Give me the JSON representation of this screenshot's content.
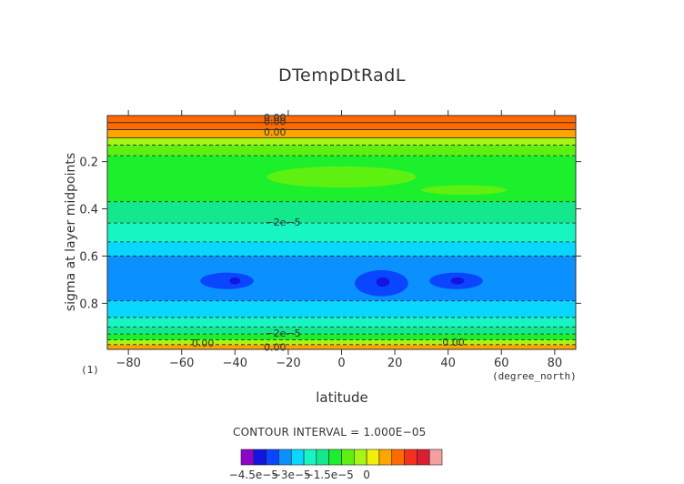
{
  "chart_data": {
    "type": "heatmap",
    "title": "DTempDtRadL",
    "xlabel": "latitude",
    "x_units": "(degree_north)",
    "ylabel": "sigma at layer midpoints",
    "panel_label": "(1)",
    "xlim": [
      -87.9,
      87.9
    ],
    "ylim": [
      0.995,
      0.005
    ],
    "x_ticks": [
      -80,
      -60,
      -40,
      -20,
      0,
      20,
      40,
      60,
      80
    ],
    "x_tick_labels": [
      "−80",
      "−60",
      "−40",
      "−20",
      "0",
      "20",
      "40",
      "60",
      "80"
    ],
    "y_ticks": [
      0.2,
      0.4,
      0.6,
      0.8
    ],
    "y_tick_labels": [
      "0.2",
      "0.4",
      "0.6",
      "0.8"
    ],
    "contour_interval_text": "CONTOUR INTERVAL = 1.000E−05",
    "contour_labels": [
      "0.00",
      "0.00",
      "0.00",
      "−2e−5",
      "−2e−5",
      "0.00",
      "0.00",
      "0.00"
    ],
    "colorbar": {
      "levels": [
        -4.5e-05,
        -4e-05,
        -3.5e-05,
        -3e-05,
        -2.5e-05,
        -2e-05,
        -1.5e-05,
        -1e-05,
        -5e-06,
        0,
        5e-06,
        1e-05
      ],
      "colors": [
        "#8d05c8",
        "#1414e0",
        "#0a46ff",
        "#0a91ff",
        "#0ad7ff",
        "#17f5c3",
        "#14e88c",
        "#1cf02c",
        "#5ef010",
        "#a6f514",
        "#f0f00a",
        "#ffa500",
        "#ff6a00",
        "#f5311e",
        "#dc1e32",
        "#f5a0a0"
      ],
      "tick_labels": [
        "−4.5e−5",
        "−3e−5",
        "−1.5e−5",
        "0"
      ]
    },
    "vertical_bands": [
      {
        "sigma": [
          0.005,
          0.035
        ],
        "value": 1.5e-05
      },
      {
        "sigma": [
          0.035,
          0.065
        ],
        "value": 1.2e-05
      },
      {
        "sigma": [
          0.065,
          0.1
        ],
        "value": 5e-06
      },
      {
        "sigma": [
          0.1,
          0.13
        ],
        "value": -3e-06
      },
      {
        "sigma": [
          0.13,
          0.175
        ],
        "value": -8e-06
      },
      {
        "sigma": [
          0.175,
          0.37
        ],
        "value": -1.3e-05
      },
      {
        "sigma": [
          0.37,
          0.46
        ],
        "value": -1.8e-05
      },
      {
        "sigma": [
          0.46,
          0.54
        ],
        "value": -2.3e-05
      },
      {
        "sigma": [
          0.54,
          0.6
        ],
        "value": -2.8e-05
      },
      {
        "sigma": [
          0.6,
          0.79
        ],
        "value": -3.3e-05
      },
      {
        "sigma": [
          0.79,
          0.86
        ],
        "value": -2.8e-05
      },
      {
        "sigma": [
          0.86,
          0.9
        ],
        "value": -2.3e-05
      },
      {
        "sigma": [
          0.9,
          0.93
        ],
        "value": -1.8e-05
      },
      {
        "sigma": [
          0.93,
          0.955
        ],
        "value": -1.3e-05
      },
      {
        "sigma": [
          0.955,
          0.975
        ],
        "value": -3e-06
      },
      {
        "sigma": [
          0.975,
          0.995
        ],
        "value": 8e-06
      }
    ],
    "features": [
      {
        "kind": "blob",
        "lat": [
          -28,
          28
        ],
        "sigma": [
          0.22,
          0.31
        ],
        "value": -8e-06
      },
      {
        "kind": "blob",
        "lat": [
          30,
          62
        ],
        "sigma": [
          0.3,
          0.34
        ],
        "value": -8e-06
      },
      {
        "kind": "blob",
        "lat": [
          -53,
          -33
        ],
        "sigma": [
          0.67,
          0.74
        ],
        "value": -3.8e-05
      },
      {
        "kind": "blob",
        "lat": [
          5,
          25
        ],
        "sigma": [
          0.66,
          0.77
        ],
        "value": -3.8e-05
      },
      {
        "kind": "blob",
        "lat": [
          33,
          53
        ],
        "sigma": [
          0.67,
          0.74
        ],
        "value": -3.8e-05
      },
      {
        "kind": "blob",
        "lat": [
          -42,
          -38
        ],
        "sigma": [
          0.69,
          0.72
        ],
        "value": -4.3e-05
      },
      {
        "kind": "blob",
        "lat": [
          13,
          18
        ],
        "sigma": [
          0.69,
          0.73
        ],
        "value": -4.3e-05
      },
      {
        "kind": "blob",
        "lat": [
          41,
          46
        ],
        "sigma": [
          0.69,
          0.72
        ],
        "value": -4.3e-05
      }
    ]
  }
}
